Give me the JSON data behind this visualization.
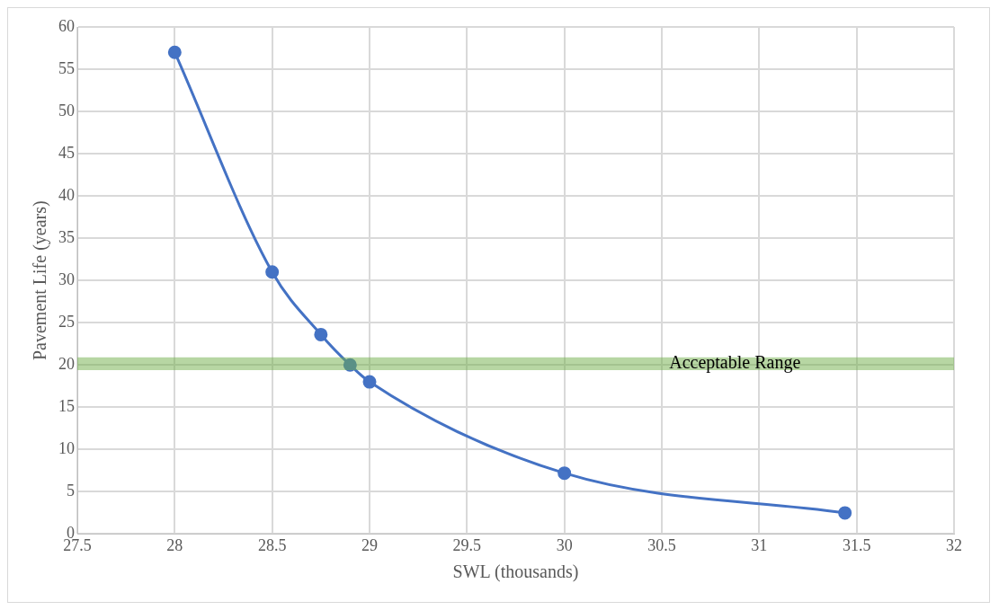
{
  "chart_data": {
    "type": "line",
    "xlabel": "SWL (thousands)",
    "ylabel": "Pavement Life (years)",
    "x": [
      28,
      28.5,
      28.75,
      28.9,
      29,
      30,
      31.44
    ],
    "series": [
      {
        "color": "#4472c4",
        "values": [
          57,
          31,
          23.6,
          20,
          18,
          7.2,
          2.5
        ]
      }
    ],
    "xlim": [
      27.5,
      32
    ],
    "xticks": [
      27.5,
      28,
      28.5,
      29,
      29.5,
      30,
      30.5,
      31,
      31.5,
      32
    ],
    "ylim": [
      0,
      60
    ],
    "yticks": [
      0,
      5,
      10,
      15,
      20,
      25,
      30,
      35,
      40,
      45,
      50,
      55,
      60
    ],
    "bands": [
      {
        "axis": "y",
        "from": 19.4,
        "to": 20.9,
        "label": "Acceptable Range",
        "color": "#70ad47"
      }
    ],
    "grid": true,
    "legend": false,
    "marker": "circle",
    "line_style": "solid"
  }
}
